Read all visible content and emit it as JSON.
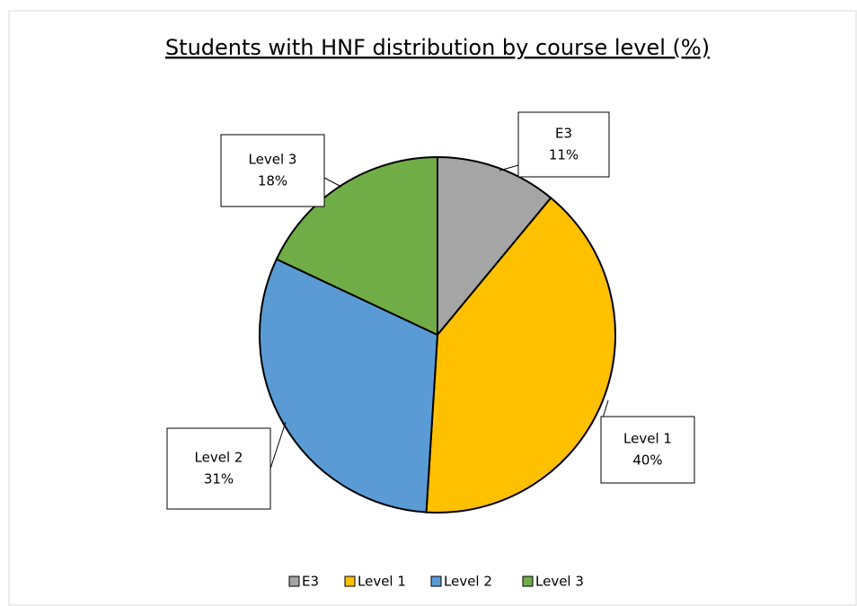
{
  "chart_data": {
    "type": "pie",
    "title": "Students with HNF distribution by course level (%)",
    "categories": [
      "E3",
      "Level 1",
      "Level 2",
      "Level 3"
    ],
    "values": [
      11,
      40,
      31,
      18
    ],
    "value_labels": [
      "11%",
      "40%",
      "31%",
      "18%"
    ],
    "colors": [
      "#a5a5a5",
      "#ffc000",
      "#5b9bd5",
      "#70ad47"
    ],
    "legend": "bottom"
  }
}
